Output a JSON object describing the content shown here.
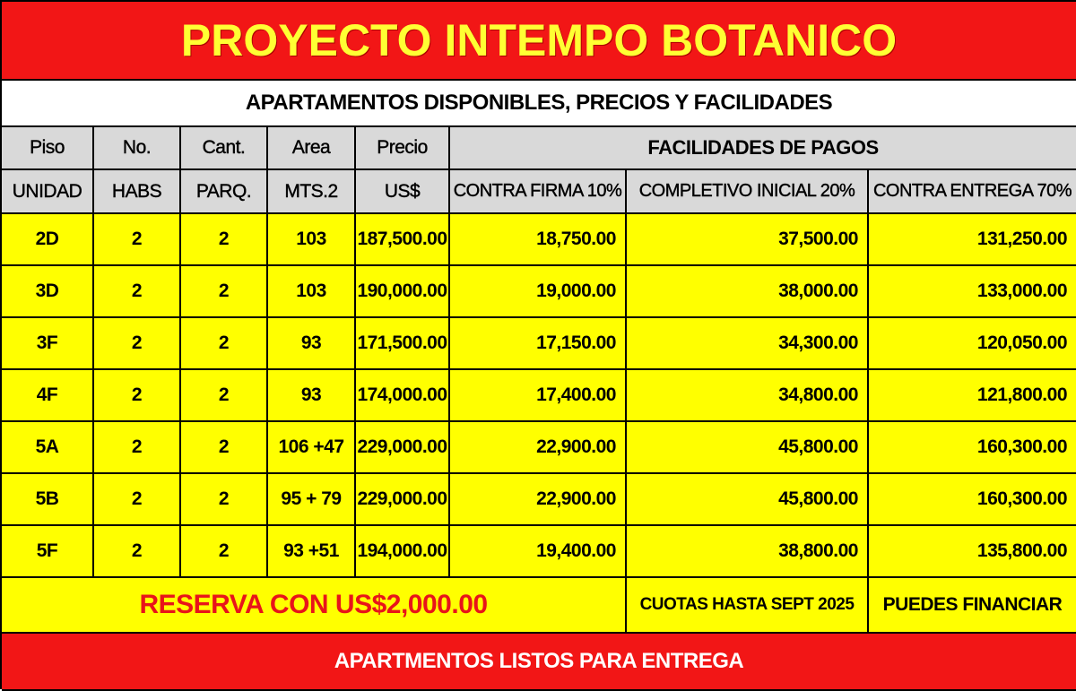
{
  "title": "PROYECTO INTEMPO BOTANICO",
  "subtitle": "APARTAMENTOS DISPONIBLES, PRECIOS Y FACILIDADES",
  "table": {
    "headers": [
      [
        "Piso",
        "UNIDAD"
      ],
      [
        "No.",
        "HABS"
      ],
      [
        "Cant.",
        "PARQ."
      ],
      [
        "Area",
        "MTS.2"
      ],
      [
        "Precio",
        "US$"
      ]
    ],
    "group_header": "FACILIDADES DE PAGOS",
    "payment_headers": [
      "CONTRA FIRMA 10%",
      "COMPLETIVO INICIAL 20%",
      "CONTRA ENTREGA 70%"
    ],
    "rows": [
      [
        "2D",
        "2",
        "2",
        "103",
        "187,500.00",
        "18,750.00",
        "37,500.00",
        "131,250.00"
      ],
      [
        "3D",
        "2",
        "2",
        "103",
        "190,000.00",
        "19,000.00",
        "38,000.00",
        "133,000.00"
      ],
      [
        "3F",
        "2",
        "2",
        "93",
        "171,500.00",
        "17,150.00",
        "34,300.00",
        "120,050.00"
      ],
      [
        "4F",
        "2",
        "2",
        "93",
        "174,000.00",
        "17,400.00",
        "34,800.00",
        "121,800.00"
      ],
      [
        "5A",
        "2",
        "2",
        "106 +47",
        "229,000.00",
        "22,900.00",
        "45,800.00",
        "160,300.00"
      ],
      [
        "5B",
        "2",
        "2",
        "95 + 79",
        "229,000.00",
        "22,900.00",
        "45,800.00",
        "160,300.00"
      ],
      [
        "5F",
        "2",
        "2",
        "93 +51",
        "194,000.00",
        "19,400.00",
        "38,800.00",
        "135,800.00"
      ]
    ]
  },
  "footer": {
    "reserve": "RESERVA CON US$2,000.00",
    "quotas": "CUOTAS HASTA SEPT 2025",
    "financing": "PUEDES FINANCIAR"
  },
  "banner": "APARTMENTOS LISTOS PARA ENTREGA"
}
